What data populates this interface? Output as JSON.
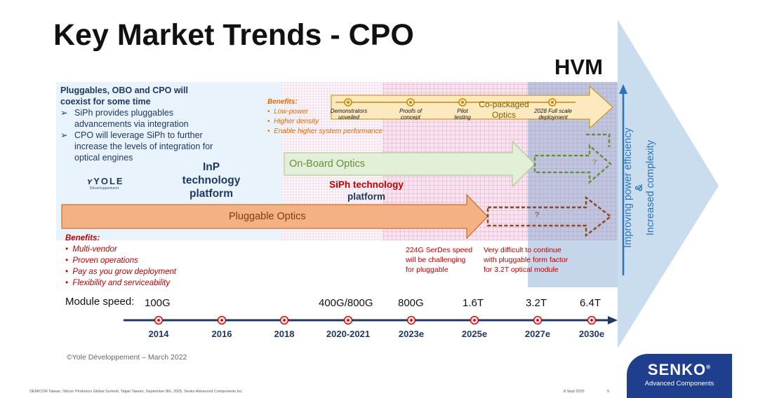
{
  "title": "Key Market Trends - CPO",
  "hvm": "HVM",
  "coexist": {
    "heading": "Pluggables, OBO and CPO will coexist for some time",
    "bullets": [
      "SiPh provides pluggables advancements via integration",
      "CPO will leverage SiPh to further increase the levels of integration for optical engines"
    ]
  },
  "logo": {
    "name": "YOLE",
    "sub": "Développement"
  },
  "platforms": {
    "inp": "InP technology platform",
    "siph_line1": "SiPh technology",
    "siph_line2": "platform"
  },
  "arrows": {
    "pluggable": "Pluggable Optics",
    "obo": "On-Board Optics",
    "cpo_line1": "Co-packaged",
    "cpo_line2": "Optics",
    "q1": "?",
    "q2": "?"
  },
  "cpo_milestones": [
    "Demonstrators unveiled",
    "Proofs of concept",
    "Pilot testing",
    "2028 Full scale deployment"
  ],
  "benefits_top": {
    "heading": "Benefits:",
    "items": [
      "Low-power",
      "Higher density",
      "Enable higher system performance"
    ]
  },
  "benefits_bottom": {
    "heading": "Benefits:",
    "items": [
      "Multi-vendor",
      "Proven operations",
      "Pay as you grow deployment",
      "Flexibility and serviceability"
    ]
  },
  "notes": {
    "serdes": "224G SerDes speed will be challenging for pluggable",
    "difficult": "Very difficult to continue with pluggable form factor for 3.2T optical module"
  },
  "timeline": {
    "label": "Module speed:",
    "speeds": [
      "100G",
      "400G/800G",
      "800G",
      "1.6T",
      "3.2T",
      "6.4T"
    ],
    "years": [
      "2014",
      "2016",
      "2018",
      "2020-2021",
      "2023e",
      "2025e",
      "2027e",
      "2030e"
    ]
  },
  "side_arrow": {
    "line1": "Improving power efficiency",
    "line2": "&",
    "line3": "Increased complexity"
  },
  "copyright": "©Yole Développement – March 2022",
  "footer": {
    "event": "SEMICON Taiwan, Silicon Photonics Global Summit, Taipei Taiwan, September 8th, 2025, Senko Advanced Components Inc.",
    "date": "8 Sept 2025",
    "page": "5"
  },
  "brand": {
    "name": "SENKO",
    "mark": "®",
    "sub": "Advanced Components"
  },
  "colors": {
    "pluggable_arrow": "#f4b183",
    "obo_arrow": "#e2efd9",
    "cpo_arrow": "#fde9c0",
    "side_arrow": "#c9ddef",
    "timeline": "#1f3864",
    "accent_red": "#c00000"
  }
}
